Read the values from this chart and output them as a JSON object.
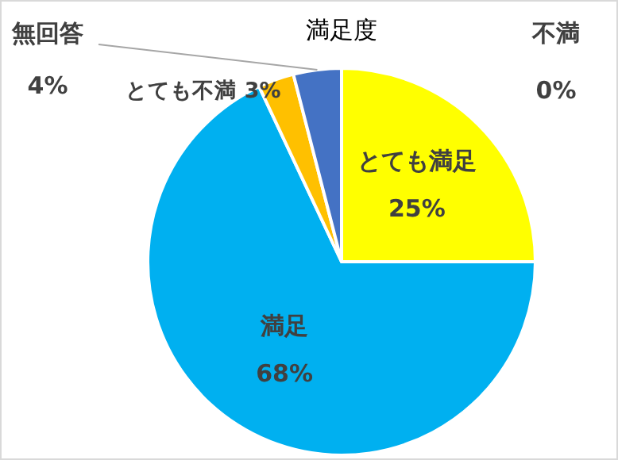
{
  "chart_data": {
    "type": "pie",
    "title": "満足度",
    "categories": [
      "とても満足",
      "満足",
      "不満",
      "とても不満",
      "無回答"
    ],
    "values": [
      25,
      68,
      0,
      3,
      4
    ],
    "value_labels": [
      "25%",
      "68%",
      "0%",
      "3%",
      "4%"
    ],
    "colors": [
      "#ffff00",
      "#00b0f0",
      "#ed7d31",
      "#ffc000",
      "#4472c4"
    ]
  }
}
